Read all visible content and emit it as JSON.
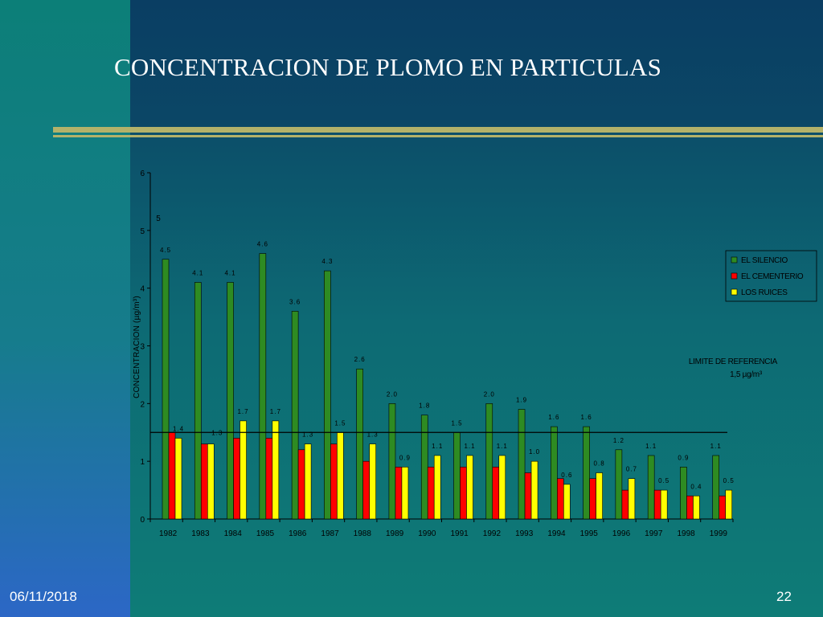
{
  "slide": {
    "title": "CONCENTRACION DE PLOMO EN PARTICULAS",
    "date": "06/11/2018",
    "page": "22"
  },
  "colors": {
    "el_silencio": "#2e8b22",
    "el_cementerio": "#ff0000",
    "los_ruices": "#ffff00",
    "accent_rule": "#b3b26a"
  },
  "chart_data": {
    "type": "bar",
    "title": "",
    "xlabel": "",
    "ylabel": "CONCENTRACION (µg/m³)",
    "ylim": [
      0,
      6
    ],
    "yticks": [
      "0",
      "1",
      "2",
      "3",
      "4",
      "5",
      "6"
    ],
    "grid": false,
    "legend_position": "right",
    "categories": [
      "1982",
      "1983",
      "1984",
      "1985",
      "1986",
      "1987",
      "1988",
      "1989",
      "1990",
      "1991",
      "1992",
      "1993",
      "1994",
      "1995",
      "1996",
      "1997",
      "1998",
      "1999"
    ],
    "series": [
      {
        "name": "EL SILENCIO",
        "values": [
          4.5,
          4.1,
          4.1,
          4.6,
          3.6,
          4.3,
          2.6,
          2.0,
          1.8,
          1.5,
          2.0,
          1.9,
          1.6,
          1.6,
          1.2,
          1.1,
          0.9,
          1.1
        ],
        "labels": [
          "4.5",
          "4.1",
          "4.1",
          "4.6",
          "3.6",
          "4.3",
          "2.6",
          "2.0",
          "1.8",
          "1.5",
          "2.0",
          "1.9",
          "1.6",
          "1.6",
          "1.2",
          "1.1",
          "0.9",
          "1.1"
        ]
      },
      {
        "name": "EL CEMENTERIO",
        "values": [
          1.5,
          1.3,
          1.4,
          1.4,
          1.2,
          1.3,
          1.0,
          0.9,
          0.9,
          0.9,
          0.9,
          0.8,
          0.7,
          0.7,
          0.5,
          0.5,
          0.4,
          0.4
        ],
        "labels": []
      },
      {
        "name": "LOS RUICES",
        "values": [
          1.4,
          1.3,
          1.7,
          1.7,
          1.3,
          1.5,
          1.3,
          0.9,
          1.1,
          1.1,
          1.1,
          1.0,
          0.6,
          0.8,
          0.7,
          0.5,
          0.4,
          0.5
        ],
        "labels": [
          "1.4",
          "1.3",
          "1.7",
          "1.7",
          "1.3",
          "1.5",
          "1.3",
          "0.9",
          "1.1",
          "1.1",
          "1.1",
          "1.0",
          "0.6",
          "0.8",
          "0.7",
          "0.5",
          "0.4",
          "0.5"
        ]
      }
    ],
    "reference_line": {
      "value": 1.5,
      "label": "LIMITE DE REFERENCIA",
      "sublabel": "1,5 µg/m³"
    },
    "annotations": [
      "5"
    ]
  }
}
